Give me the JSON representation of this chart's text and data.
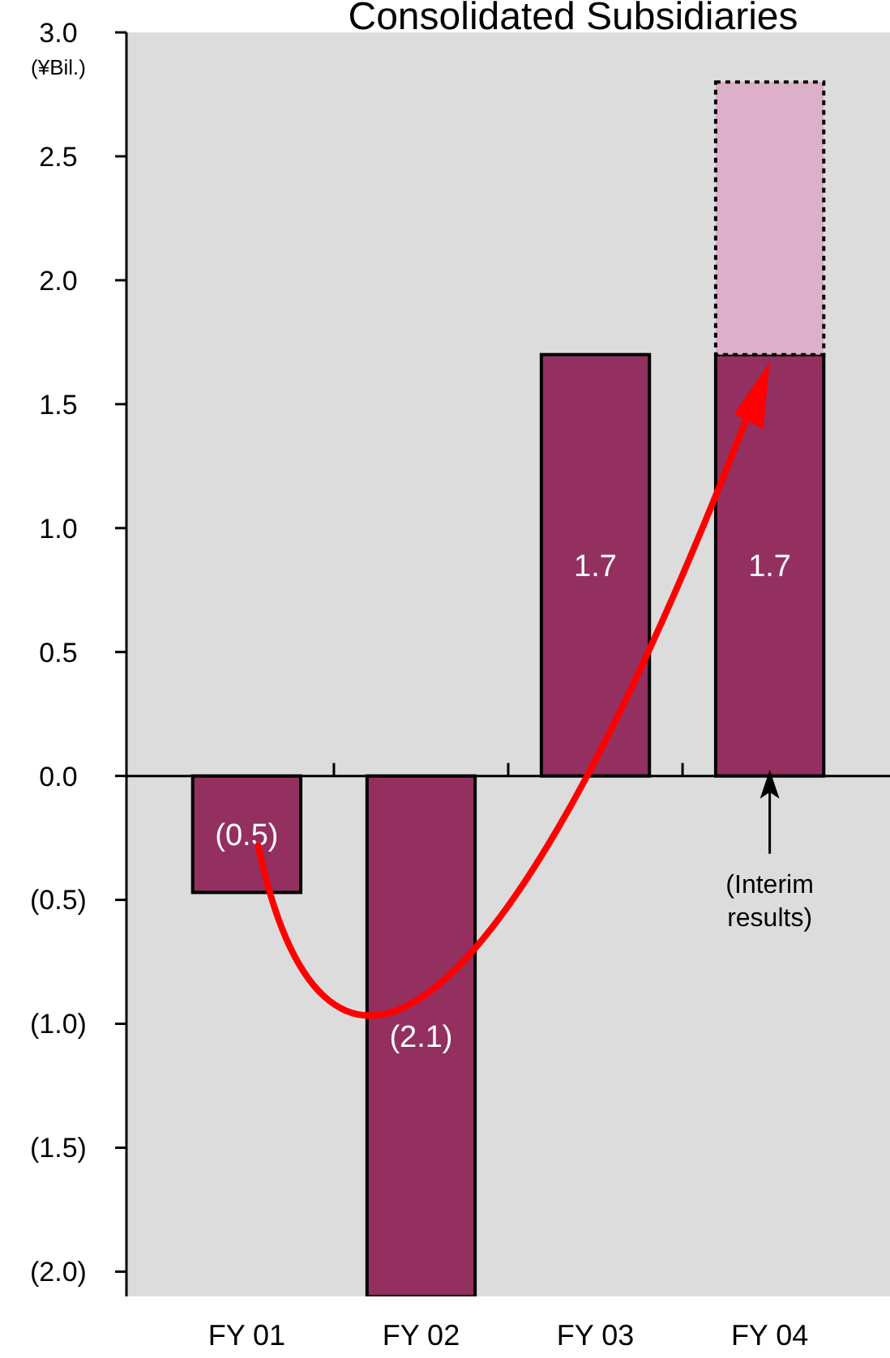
{
  "chart_data": {
    "type": "bar",
    "title": "Consolidated Subsidiaries",
    "ylabel": "(¥Bil.)",
    "categories": [
      "FY 01",
      "FY 02",
      "FY 03",
      "FY 04"
    ],
    "stacked": true,
    "series": [
      {
        "color": "#93305f",
        "values": [
          -0.47,
          -2.1,
          1.7,
          1.7
        ],
        "value_labels": [
          "(0.5)",
          "(2.1)",
          "1.7",
          "1.7"
        ]
      },
      {
        "color": "#dcb0c8",
        "values": [
          null,
          null,
          null,
          1.1
        ],
        "line_style": "dotted"
      }
    ],
    "ylim": [
      -2.1,
      3.0
    ],
    "yticks": [
      {
        "value": -2.0,
        "label": "(2.0)"
      },
      {
        "value": -1.5,
        "label": "(1.5)"
      },
      {
        "value": -1.0,
        "label": "(1.0)"
      },
      {
        "value": -0.5,
        "label": "(0.5)"
      },
      "0.0",
      0.5,
      "1.0",
      1.5,
      "2.0",
      2.5,
      "3.0"
    ],
    "annotations": [
      "(Interim results)"
    ],
    "grid": false
  }
}
